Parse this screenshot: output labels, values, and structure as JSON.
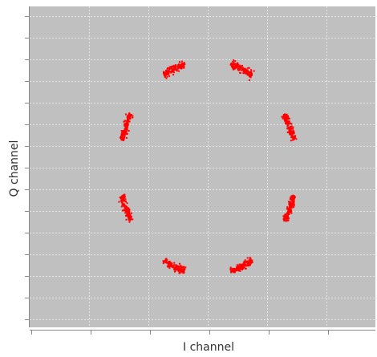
{
  "chart_data": {
    "type": "scatter",
    "title": "",
    "xlabel": "I channel",
    "ylabel": "Q channel",
    "xlim": [
      -1.5,
      1.5
    ],
    "ylim": [
      -1.5,
      1.5
    ],
    "grid": true,
    "legend": "none",
    "series": [
      {
        "marker": "dot",
        "color": "#ff0000",
        "constellation": "8-PSK",
        "radius": 0.74,
        "phase_deg": [
          22.5,
          67.5,
          112.5,
          157.5,
          202.5,
          247.5,
          292.5,
          337.5
        ],
        "spread_deg": 15,
        "points_per_symbol": 150
      }
    ]
  },
  "colors": {
    "plot_background": "#c0c0c0",
    "grid": "#e6e6e6",
    "axis": "#888888",
    "marker": "#ff0000"
  }
}
